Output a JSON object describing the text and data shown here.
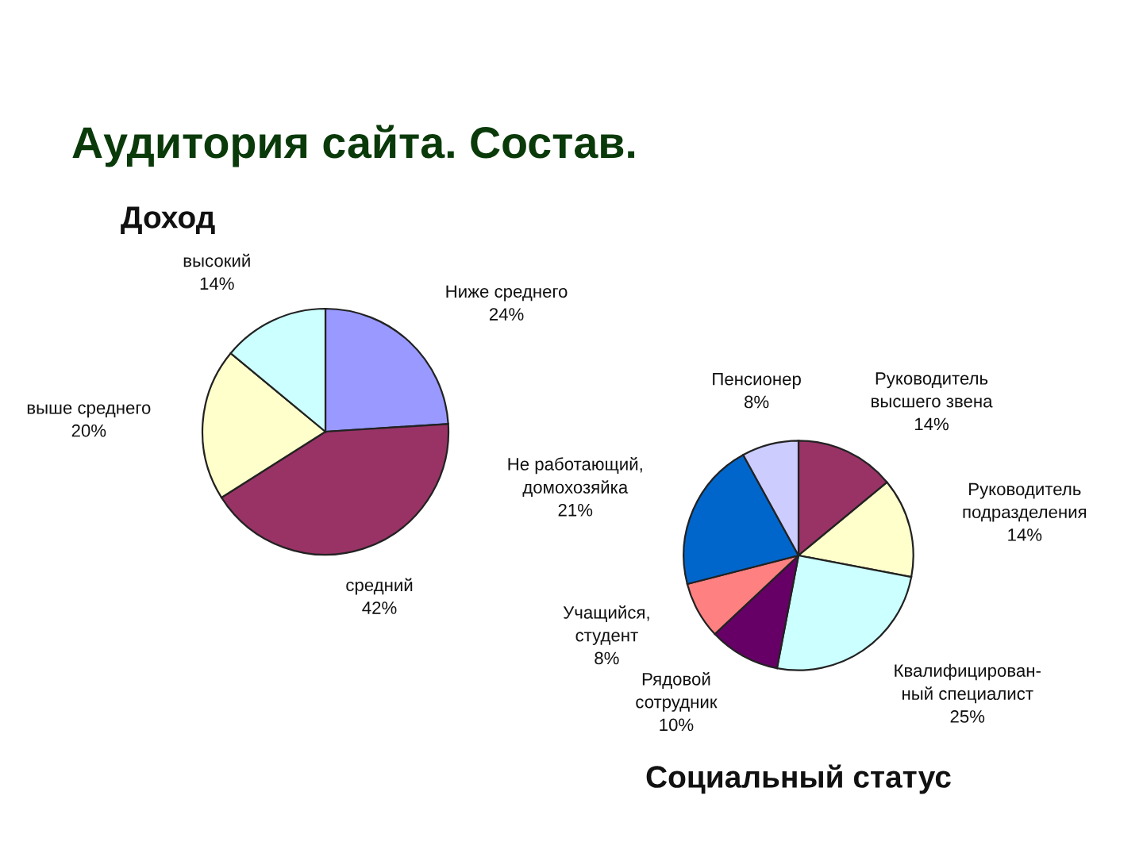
{
  "chart_data": [
    {
      "type": "other",
      "title": "Аудитория сайта. Состав."
    },
    {
      "type": "pie",
      "title": "Доход",
      "categories": [
        "Ниже среднего",
        "средний",
        "выше среднего",
        "высокий"
      ],
      "values": [
        24,
        42,
        20,
        14
      ],
      "colors": [
        "#9999ff",
        "#993366",
        "#ffffcc",
        "#ccffff"
      ],
      "value_labels": [
        "24%",
        "42%",
        "20%",
        "14%"
      ]
    },
    {
      "type": "pie",
      "title": "Социальный статус",
      "categories": [
        "Руководитель\nвысшего звена",
        "Руководитель\nподразделения",
        "Квалифицирован-\nный специалист",
        "Рядовой\nсотрудник",
        "Учащийся,\nстудент",
        "Не работающий,\nдомохозяйка",
        "Пенсионер"
      ],
      "values": [
        14,
        14,
        25,
        10,
        8,
        21,
        8
      ],
      "colors": [
        "#993366",
        "#ffffcc",
        "#ccffff",
        "#660066",
        "#ff8080",
        "#0066cc",
        "#ccccff"
      ],
      "value_labels": [
        "14%",
        "14%",
        "25%",
        "10%",
        "8%",
        "21%",
        "8%"
      ]
    }
  ]
}
